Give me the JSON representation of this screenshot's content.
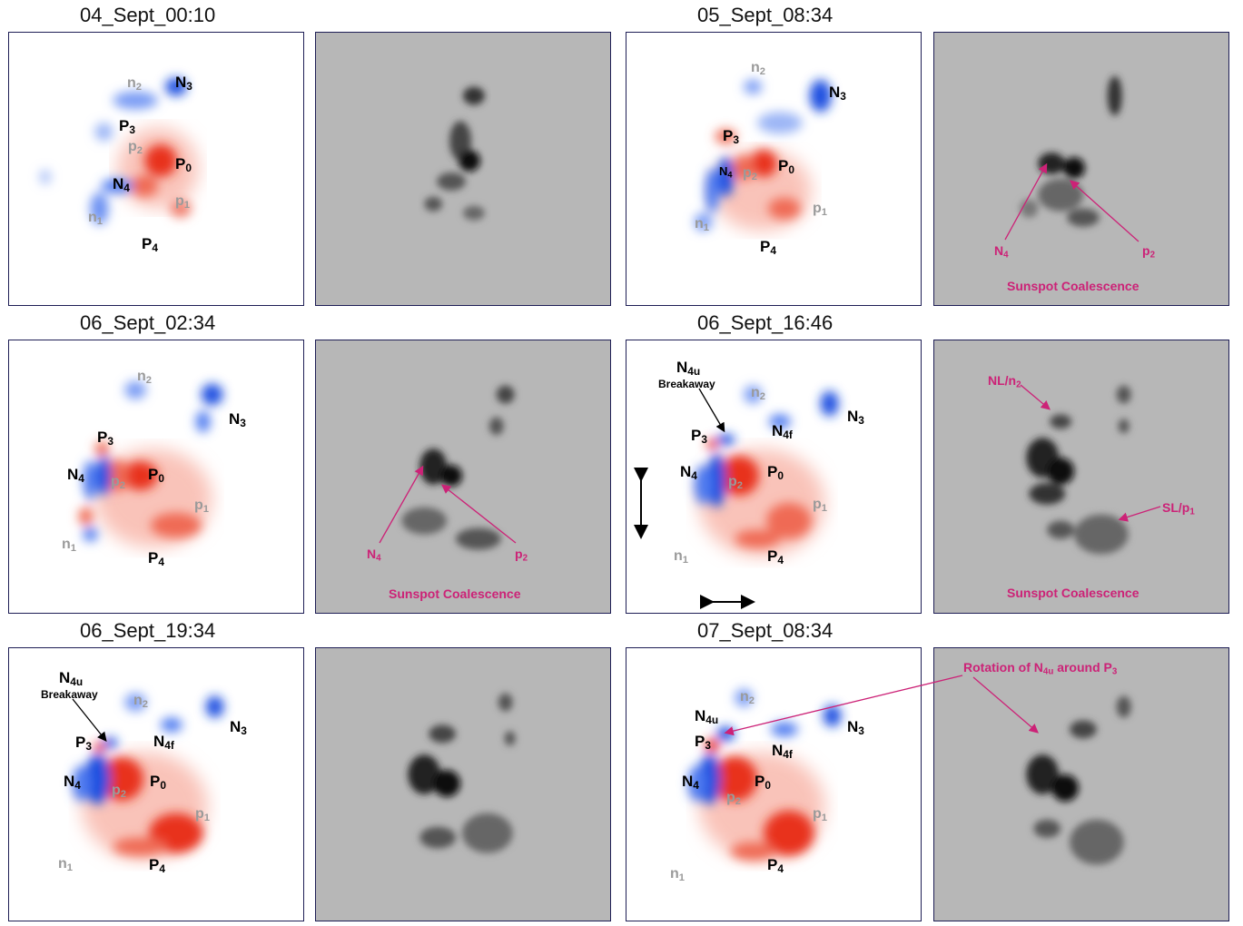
{
  "rows": [
    {
      "left_time": "04_Sept_00:10",
      "right_time": "05_Sept_08:34"
    },
    {
      "left_time": "06_Sept_02:34",
      "right_time": "06_Sept_16:46"
    },
    {
      "left_time": "06_Sept_19:34",
      "right_time": "07_Sept_08:34"
    }
  ],
  "labels": {
    "N": "N",
    "P": "P",
    "n": "n",
    "p": "p",
    "s0": "0",
    "s1": "1",
    "s2": "2",
    "s3": "3",
    "s4": "4",
    "s4u": "4u",
    "s4f": "4f",
    "breakaway": "Breakaway",
    "coalescence": "Sunspot Coalescence",
    "NL": "NL/n",
    "SL": "SL/p",
    "rotation_prefix": "Rotation of N",
    "rotation_mid": " around P"
  },
  "colors": {
    "negative": "#1f4fe0",
    "positive": "#e8321e",
    "annotation": "#cc2277",
    "frame": "#1e1e55"
  }
}
